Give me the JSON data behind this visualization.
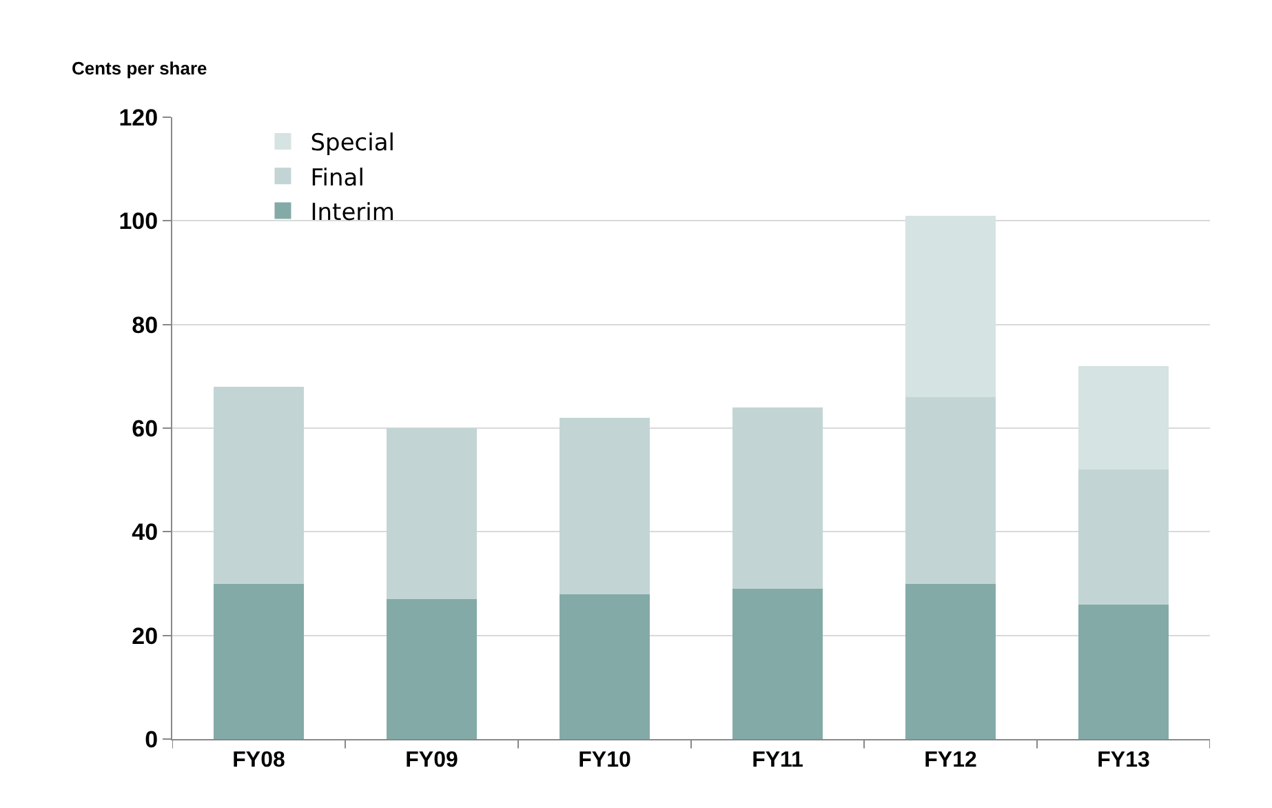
{
  "chart_data": {
    "type": "bar",
    "stacked": true,
    "ylabel": "Cents per share",
    "categories": [
      "FY08",
      "FY09",
      "FY10",
      "FY11",
      "FY12",
      "FY13"
    ],
    "series": [
      {
        "name": "Interim",
        "color": "#84aaa8",
        "values": [
          30,
          27,
          28,
          29,
          30,
          26
        ]
      },
      {
        "name": "Final",
        "color": "#c2d5d4",
        "values": [
          38,
          33,
          34,
          35,
          36,
          26
        ]
      },
      {
        "name": "Special",
        "color": "#d5e3e2",
        "values": [
          null,
          null,
          null,
          null,
          35,
          20
        ]
      }
    ],
    "ylim": [
      0,
      120
    ],
    "yticks": [
      0,
      20,
      40,
      60,
      80,
      100,
      120
    ],
    "grid": "y",
    "legend": "top left"
  }
}
